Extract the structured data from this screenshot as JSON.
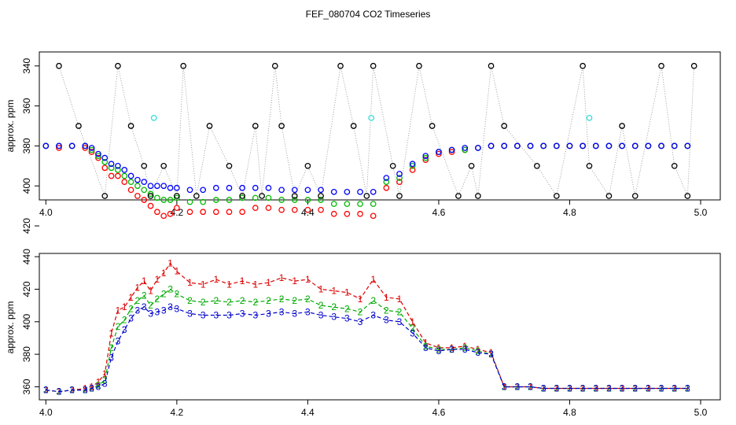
{
  "title": "FEF_080704  CO2 Timeseries",
  "chart_data": [
    {
      "type": "scatter",
      "ylabel": "approx. ppm",
      "xlabel": "",
      "xlim": [
        3.99,
        5.03
      ],
      "ylim": [
        333,
        407
      ],
      "y_inverted": true,
      "xticks": [
        "4.0",
        "4.2",
        "4.4",
        "4.6",
        "4.8",
        "5.0"
      ],
      "yticks": [
        "340",
        "360",
        "380",
        "400",
        "420"
      ],
      "series": [
        {
          "name": "red",
          "color": "#ff0000",
          "x": [
            4.0,
            4.02,
            4.04,
            4.06,
            4.07,
            4.08,
            4.09,
            4.1,
            4.11,
            4.12,
            4.13,
            4.14,
            4.15,
            4.16,
            4.17,
            4.18,
            4.19,
            4.2,
            4.22,
            4.24,
            4.26,
            4.28,
            4.3,
            4.32,
            4.34,
            4.36,
            4.38,
            4.4,
            4.42,
            4.44,
            4.46,
            4.48,
            4.5,
            4.52,
            4.54,
            4.56,
            4.58,
            4.6,
            4.62,
            4.64,
            4.66,
            4.68,
            4.7,
            4.72,
            4.74,
            4.76,
            4.78,
            4.8,
            4.82,
            4.84,
            4.86,
            4.88,
            4.9,
            4.92,
            4.94,
            4.96,
            4.98
          ],
          "y": [
            380,
            381,
            380,
            381,
            383,
            386,
            391,
            395,
            395,
            398,
            402,
            405,
            407,
            410,
            413,
            415,
            414,
            411,
            413,
            413,
            413,
            413,
            413,
            411,
            411,
            412,
            412,
            412,
            412,
            414,
            414,
            414,
            415,
            401,
            398,
            392,
            387,
            384,
            383,
            382,
            381,
            380,
            380,
            380,
            380,
            380,
            380,
            380,
            380,
            380,
            380,
            380,
            380,
            380,
            380,
            380,
            380
          ]
        },
        {
          "name": "green",
          "color": "#00bb00",
          "x": [
            4.0,
            4.02,
            4.04,
            4.06,
            4.07,
            4.08,
            4.09,
            4.1,
            4.11,
            4.12,
            4.13,
            4.14,
            4.15,
            4.16,
            4.17,
            4.18,
            4.19,
            4.2,
            4.22,
            4.24,
            4.26,
            4.28,
            4.3,
            4.32,
            4.34,
            4.36,
            4.38,
            4.4,
            4.42,
            4.44,
            4.46,
            4.48,
            4.5,
            4.52,
            4.54,
            4.56,
            4.58,
            4.6,
            4.62,
            4.64,
            4.66,
            4.68,
            4.7,
            4.72,
            4.74,
            4.76,
            4.78,
            4.8,
            4.82,
            4.84,
            4.86,
            4.88,
            4.9,
            4.92,
            4.94,
            4.96,
            4.98
          ],
          "y": [
            380,
            380,
            380,
            380,
            382,
            385,
            388,
            391,
            392,
            395,
            398,
            400,
            402,
            404,
            406,
            407,
            407,
            406,
            408,
            408,
            407,
            407,
            406,
            406,
            406,
            407,
            407,
            407,
            407,
            409,
            409,
            409,
            409,
            398,
            396,
            390,
            386,
            383,
            382,
            382,
            381,
            380,
            380,
            380,
            380,
            380,
            380,
            380,
            380,
            380,
            380,
            380,
            380,
            380,
            380,
            380,
            380
          ]
        },
        {
          "name": "blue",
          "color": "#0000ff",
          "x": [
            4.0,
            4.02,
            4.04,
            4.06,
            4.07,
            4.08,
            4.09,
            4.1,
            4.11,
            4.12,
            4.13,
            4.14,
            4.15,
            4.16,
            4.17,
            4.18,
            4.19,
            4.2,
            4.22,
            4.24,
            4.26,
            4.28,
            4.3,
            4.32,
            4.34,
            4.36,
            4.38,
            4.4,
            4.42,
            4.44,
            4.46,
            4.48,
            4.5,
            4.52,
            4.54,
            4.56,
            4.58,
            4.6,
            4.62,
            4.64,
            4.66,
            4.68,
            4.7,
            4.72,
            4.74,
            4.76,
            4.78,
            4.8,
            4.82,
            4.84,
            4.86,
            4.88,
            4.9,
            4.92,
            4.94,
            4.96,
            4.98
          ],
          "y": [
            380,
            380,
            380,
            380,
            381,
            384,
            386,
            389,
            390,
            392,
            395,
            397,
            398,
            400,
            400,
            400,
            401,
            401,
            402,
            402,
            401,
            401,
            401,
            401,
            401,
            402,
            402,
            402,
            402,
            403,
            403,
            403,
            403,
            396,
            394,
            389,
            385,
            383,
            382,
            381,
            381,
            380,
            380,
            380,
            380,
            380,
            380,
            380,
            380,
            380,
            380,
            380,
            380,
            380,
            380,
            380,
            380
          ]
        },
        {
          "name": "black",
          "color": "#000000",
          "x": [
            4.02,
            4.05,
            4.09,
            4.11,
            4.13,
            4.15,
            4.16,
            4.18,
            4.2,
            4.21,
            4.23,
            4.25,
            4.28,
            4.3,
            4.32,
            4.33,
            4.35,
            4.36,
            4.38,
            4.4,
            4.42,
            4.45,
            4.47,
            4.49,
            4.5,
            4.53,
            4.54,
            4.57,
            4.59,
            4.63,
            4.65,
            4.66,
            4.68,
            4.7,
            4.75,
            4.78,
            4.82,
            4.83,
            4.86,
            4.88,
            4.9,
            4.94,
            4.96,
            4.98,
            4.99
          ],
          "y": [
            340,
            370,
            405,
            340,
            370,
            390,
            405,
            390,
            405,
            340,
            405,
            370,
            390,
            405,
            370,
            405,
            340,
            370,
            405,
            390,
            405,
            340,
            370,
            405,
            340,
            390,
            405,
            340,
            370,
            405,
            390,
            405,
            340,
            370,
            390,
            405,
            340,
            390,
            405,
            370,
            405,
            340,
            390,
            405,
            340
          ]
        },
        {
          "name": "cyan",
          "color": "#33dddd",
          "x": [
            4.165,
            4.497,
            4.83
          ],
          "y": [
            366,
            366,
            366
          ]
        }
      ]
    },
    {
      "type": "line",
      "ylabel": "approx. ppm",
      "xlabel": "",
      "xlim": [
        3.99,
        5.03
      ],
      "ylim": [
        352,
        442
      ],
      "xticks": [
        "4.0",
        "4.2",
        "4.4",
        "4.6",
        "4.8",
        "5.0"
      ],
      "yticks": [
        "360",
        "380",
        "400",
        "420",
        "440"
      ],
      "series": [
        {
          "name": "1",
          "color": "#dd0000",
          "label": "1",
          "x": [
            4.0,
            4.02,
            4.04,
            4.06,
            4.07,
            4.08,
            4.09,
            4.1,
            4.11,
            4.12,
            4.13,
            4.14,
            4.15,
            4.16,
            4.17,
            4.18,
            4.19,
            4.2,
            4.22,
            4.24,
            4.26,
            4.28,
            4.3,
            4.32,
            4.34,
            4.36,
            4.38,
            4.4,
            4.42,
            4.44,
            4.46,
            4.48,
            4.5,
            4.52,
            4.54,
            4.56,
            4.58,
            4.6,
            4.62,
            4.64,
            4.66,
            4.68,
            4.7,
            4.72,
            4.74,
            4.76,
            4.78,
            4.8,
            4.82,
            4.84,
            4.86,
            4.88,
            4.9,
            4.92,
            4.94,
            4.96,
            4.98
          ],
          "y": [
            358,
            357,
            358,
            359,
            360,
            363,
            368,
            393,
            407,
            409,
            415,
            421,
            425,
            419,
            426,
            430,
            436,
            431,
            424,
            423,
            426,
            423,
            425,
            423,
            424,
            427,
            425,
            426,
            420,
            419,
            418,
            414,
            426,
            415,
            414,
            400,
            387,
            384,
            384,
            385,
            383,
            381,
            360,
            360,
            360,
            359,
            359,
            359,
            359,
            359,
            359,
            359,
            359,
            359,
            359,
            359,
            359
          ]
        },
        {
          "name": "2",
          "color": "#00aa00",
          "label": "2",
          "x": [
            4.0,
            4.02,
            4.04,
            4.06,
            4.07,
            4.08,
            4.09,
            4.1,
            4.11,
            4.12,
            4.13,
            4.14,
            4.15,
            4.16,
            4.17,
            4.18,
            4.19,
            4.2,
            4.22,
            4.24,
            4.26,
            4.28,
            4.3,
            4.32,
            4.34,
            4.36,
            4.38,
            4.4,
            4.42,
            4.44,
            4.46,
            4.48,
            4.5,
            4.52,
            4.54,
            4.56,
            4.58,
            4.6,
            4.62,
            4.64,
            4.66,
            4.68,
            4.7,
            4.72,
            4.74,
            4.76,
            4.78,
            4.8,
            4.82,
            4.84,
            4.86,
            4.88,
            4.9,
            4.92,
            4.94,
            4.96,
            4.98
          ],
          "y": [
            358,
            357,
            358,
            358,
            359,
            361,
            364,
            384,
            397,
            401,
            408,
            413,
            416,
            410,
            414,
            417,
            420,
            417,
            413,
            412,
            413,
            412,
            413,
            412,
            413,
            414,
            413,
            414,
            410,
            409,
            408,
            406,
            413,
            407,
            406,
            396,
            385,
            383,
            383,
            384,
            382,
            380,
            360,
            360,
            360,
            359,
            359,
            359,
            359,
            359,
            359,
            359,
            359,
            359,
            359,
            359,
            359
          ]
        },
        {
          "name": "3",
          "color": "#0000cc",
          "label": "3",
          "x": [
            4.0,
            4.02,
            4.04,
            4.06,
            4.07,
            4.08,
            4.09,
            4.1,
            4.11,
            4.12,
            4.13,
            4.14,
            4.15,
            4.16,
            4.17,
            4.18,
            4.19,
            4.2,
            4.22,
            4.24,
            4.26,
            4.28,
            4.3,
            4.32,
            4.34,
            4.36,
            4.38,
            4.4,
            4.42,
            4.44,
            4.46,
            4.48,
            4.5,
            4.52,
            4.54,
            4.56,
            4.58,
            4.6,
            4.62,
            4.64,
            4.66,
            4.68,
            4.7,
            4.72,
            4.74,
            4.76,
            4.78,
            4.8,
            4.82,
            4.84,
            4.86,
            4.88,
            4.9,
            4.92,
            4.94,
            4.96,
            4.98
          ],
          "y": [
            358,
            357,
            358,
            358,
            359,
            360,
            362,
            378,
            388,
            395,
            402,
            407,
            409,
            405,
            406,
            407,
            409,
            408,
            405,
            404,
            404,
            404,
            405,
            404,
            405,
            406,
            405,
            406,
            404,
            403,
            402,
            400,
            404,
            401,
            400,
            393,
            384,
            382,
            383,
            383,
            381,
            380,
            360,
            360,
            360,
            359,
            359,
            359,
            359,
            359,
            359,
            359,
            359,
            359,
            359,
            359,
            359
          ]
        }
      ]
    }
  ]
}
